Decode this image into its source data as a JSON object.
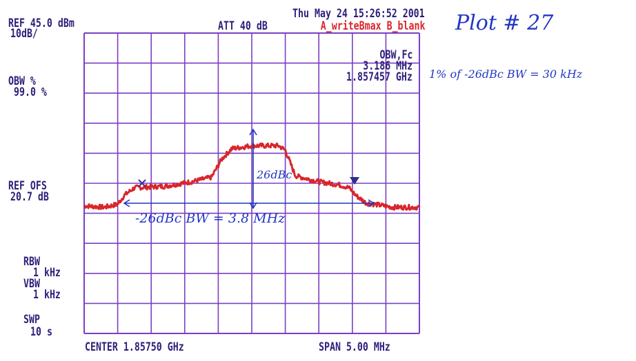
{
  "header": {
    "ref_level": "REF 45.0 dBm",
    "scale": "10dB/",
    "attenuation": "ATT 40 dB",
    "timestamp": "Thu May 24 15:26:52 2001",
    "trace_mode": "A_writeBmax B_blank"
  },
  "left_panel": {
    "obw_label": "OBW %",
    "obw_value": "99.0 %",
    "ref_ofs_label": "REF OFS",
    "ref_ofs_value": "20.7 dB",
    "rbw_label": "RBW",
    "rbw_value": "1 kHz",
    "vbw_label": "VBW",
    "vbw_value": "1 kHz",
    "swp_label": "SWP",
    "swp_value": "10 s"
  },
  "readout": {
    "title": "OBW,Fc",
    "obw": "3.186 MHz",
    "fc": "1.857457 GHz"
  },
  "footer": {
    "center": "CENTER 1.85750 GHz",
    "span": "SPAN 5.00 MHz"
  },
  "handwriting": {
    "plot_number": "Plot # 27",
    "note_1pct": "1% of -26dBc BW = 30 kHz",
    "bw_note": "-26dBc BW = 3.8 MHz",
    "depth_note": "26dBc"
  },
  "colors": {
    "grid": "#7a3fc4",
    "trace": "#d9262b",
    "instrument_text": "#2d1f7a",
    "ink": "#2236c2"
  },
  "chart_data": {
    "type": "line",
    "xlabel": "",
    "ylabel": "",
    "xlim": [
      1.855,
      1.86
    ],
    "ylim": [
      -55,
      45
    ],
    "x_unit": "GHz",
    "y_unit": "dBm",
    "grid": true,
    "series": [
      {
        "points": [
          [
            1.855,
            -12.5
          ],
          [
            1.8553,
            -13.0
          ],
          [
            1.8555,
            -12.0
          ],
          [
            1.8556,
            -9.0
          ],
          [
            1.85575,
            -6.5
          ],
          [
            1.8562,
            -6.0
          ],
          [
            1.8566,
            -4.5
          ],
          [
            1.8569,
            -3.0
          ],
          [
            1.85705,
            3.0
          ],
          [
            1.8572,
            6.5
          ],
          [
            1.8575,
            7.5
          ],
          [
            1.8579,
            7.5
          ],
          [
            1.858,
            6.0
          ],
          [
            1.85815,
            -2.5
          ],
          [
            1.8585,
            -4.5
          ],
          [
            1.8588,
            -5.5
          ],
          [
            1.85895,
            -6.5
          ],
          [
            1.85905,
            -9.0
          ],
          [
            1.8592,
            -11.5
          ],
          [
            1.8596,
            -13.0
          ],
          [
            1.86,
            -13.0
          ]
        ]
      }
    ]
  }
}
